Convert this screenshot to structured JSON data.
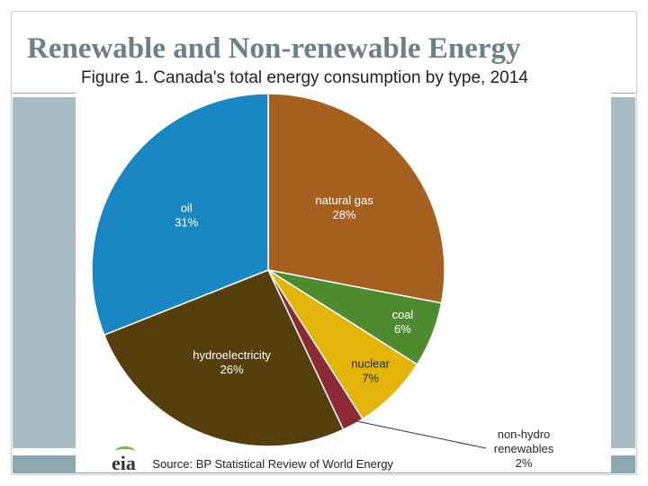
{
  "slide": {
    "title": "Renewable and Non-renewable Energy"
  },
  "figure": {
    "title": "Figure 1. Canada's total energy consumption by type, 2014",
    "logo_text": "eia",
    "source": "Source: BP Statistical Review of World Energy"
  },
  "colors": {
    "title": "#6e7f86",
    "band": "#a9bcc3",
    "oil": "#1a87c3",
    "natural_gas": "#a5601f",
    "coal": "#4e8a2e",
    "nuclear": "#e3b40a",
    "non_hydro_renewables": "#8e2a36",
    "hydroelectricity": "#553f0d"
  },
  "chart_data": {
    "type": "pie",
    "title": "Figure 1. Canada's total energy consumption by type, 2014",
    "slices": [
      {
        "name": "natural gas",
        "value": 28,
        "label": "28%",
        "color": "#a5601f",
        "label_color": "#ffffff"
      },
      {
        "name": "coal",
        "value": 6,
        "label": "6%",
        "color": "#4e8a2e",
        "label_color": "#ffffff"
      },
      {
        "name": "nuclear",
        "value": 7,
        "label": "7%",
        "color": "#e3b40a",
        "label_color": "#2a2a2a"
      },
      {
        "name": "non-hydro renewables",
        "value": 2,
        "label": "2%",
        "color": "#8e2a36",
        "label_color": "#2a2a2a",
        "outside": true
      },
      {
        "name": "hydroelectricity",
        "value": 26,
        "label": "26%",
        "color": "#553f0d",
        "label_color": "#ffffff"
      },
      {
        "name": "oil",
        "value": 31,
        "label": "31%",
        "color": "#1a87c3",
        "label_color": "#ffffff"
      }
    ],
    "start_angle_deg": 0,
    "direction": "clockwise",
    "source": "Source: BP Statistical Review of World Energy"
  }
}
